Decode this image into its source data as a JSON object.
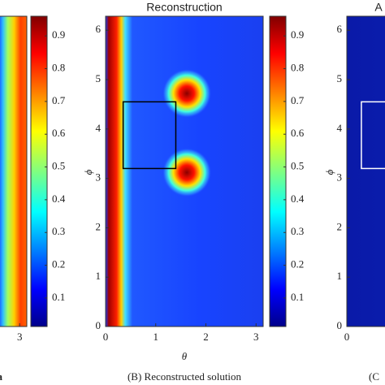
{
  "chart_data": [
    {
      "type": "heatmap",
      "xlim": [
        0,
        3.1416
      ],
      "ylim": [
        0,
        6.2832
      ],
      "xticks": [
        3
      ],
      "caption": "a",
      "fill": "left"
    },
    {
      "type": "colorbar",
      "ylim": [
        0.013,
        0.96
      ],
      "yticks": [
        0.1,
        0.2,
        0.3,
        0.4,
        0.5,
        0.6,
        0.7,
        0.8,
        0.9
      ]
    },
    {
      "type": "heatmap",
      "title": "Reconstruction",
      "xlabel": "θ",
      "ylabel": "ϕ",
      "caption": "(B) Reconstructed solution",
      "xlim": [
        0,
        3.1416
      ],
      "ylim": [
        0,
        6.2832
      ],
      "xticks": [
        0,
        1,
        2,
        3
      ],
      "yticks": [
        0,
        1,
        2,
        3,
        4,
        5,
        6
      ],
      "peaks": [
        {
          "x": 1.62,
          "y": 4.72,
          "value": 0.95
        },
        {
          "x": 1.62,
          "y": 3.12,
          "value": 0.95
        }
      ],
      "box": {
        "x": [
          0.35,
          1.4
        ],
        "y": [
          3.2,
          4.55
        ]
      },
      "box_color": "#000000",
      "fill": "middle"
    },
    {
      "type": "colorbar",
      "ylim": [
        0.013,
        0.96
      ],
      "yticks": [
        0.1,
        0.2,
        0.3,
        0.4,
        0.5,
        0.6,
        0.7,
        0.8,
        0.9
      ]
    },
    {
      "type": "heatmap",
      "title": "A",
      "ylabel": "ϕ",
      "caption": "(C",
      "xlim": [
        0,
        3.1416
      ],
      "ylim": [
        0,
        6.2832
      ],
      "xticks": [
        0
      ],
      "yticks": [
        0,
        1,
        2,
        3,
        4,
        5,
        6
      ],
      "box": {
        "x": [
          0.29,
          1.4
        ],
        "y": [
          3.2,
          4.55
        ]
      },
      "box_color": "#ffffff",
      "fill": "right"
    }
  ]
}
